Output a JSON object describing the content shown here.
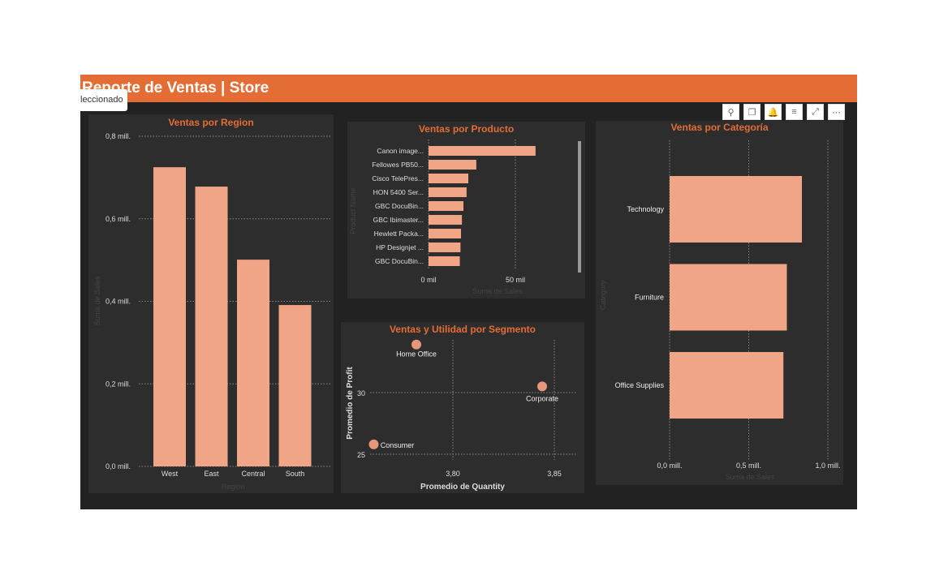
{
  "header": {
    "title": "Reporte de Ventas | Store"
  },
  "tooltip": {
    "text": "leccionado"
  },
  "toolbar": [
    {
      "name": "pin-icon",
      "glyph": "⚲"
    },
    {
      "name": "copy-icon",
      "glyph": "❐"
    },
    {
      "name": "bell-icon",
      "glyph": "🔔"
    },
    {
      "name": "filter-icon",
      "glyph": "≡"
    },
    {
      "name": "focus-mode-icon",
      "glyph": "⤢"
    },
    {
      "name": "more-options-icon",
      "glyph": "⋯"
    }
  ],
  "colors": {
    "accent": "#E46C35",
    "bar": "#F0A586",
    "panel": "#2d2d2d"
  },
  "chart_data": [
    {
      "id": "region",
      "type": "bar",
      "title": "Ventas por Region",
      "xlabel": "Region",
      "ylabel": "Suma de Sales",
      "categories": [
        "West",
        "East",
        "Central",
        "South"
      ],
      "values": [
        0.725,
        0.678,
        0.501,
        0.391
      ],
      "ylim": [
        0,
        0.8
      ],
      "yticks": [
        0,
        0.2,
        0.4,
        0.6,
        0.8
      ],
      "ytick_labels": [
        "0,0 mill.",
        "0,2 mill.",
        "0,4 mill.",
        "0,6 mill.",
        "0,8 mill."
      ],
      "grid": true
    },
    {
      "id": "producto",
      "type": "bar",
      "orientation": "horizontal",
      "title": "Ventas por Producto",
      "xlabel": "Suma de Sales",
      "ylabel": "Product Name",
      "categories": [
        "Canon image...",
        "Fellowes PB50...",
        "Cisco TelePres...",
        "HON 5400 Ser...",
        "GBC DocuBin...",
        "GBC Ibimaster...",
        "Hewlett Packa...",
        "HP Designjet ...",
        "GBC DocuBin..."
      ],
      "values": [
        61.6,
        27.5,
        22.9,
        21.9,
        20.1,
        19.2,
        18.7,
        18.4,
        18.0
      ],
      "xlim": [
        0,
        85
      ],
      "xticks": [
        0,
        50
      ],
      "xtick_labels": [
        "0 mil",
        "50 mil"
      ],
      "grid": true
    },
    {
      "id": "segmento",
      "type": "scatter",
      "title": "Ventas y Utilidad por Segmento",
      "xlabel": "Promedio de Quantity",
      "ylabel": "Promedio de Profit",
      "points": [
        {
          "label": "Home Office",
          "x": 3.782,
          "y": 33.9
        },
        {
          "label": "Corporate",
          "x": 3.844,
          "y": 30.5
        },
        {
          "label": "Consumer",
          "x": 3.761,
          "y": 25.8
        }
      ],
      "xlim": [
        3.761,
        3.862
      ],
      "ylim": [
        24.8,
        33.9
      ],
      "xticks": [
        3.8,
        3.85
      ],
      "xtick_labels": [
        "3,80",
        "3,85"
      ],
      "yticks": [
        25,
        30
      ],
      "ytick_labels": [
        "25",
        "30"
      ],
      "grid": true
    },
    {
      "id": "categoria",
      "type": "bar",
      "orientation": "horizontal",
      "title": "Ventas por Categoría",
      "xlabel": "Suma de Sales",
      "ylabel": "Category",
      "categories": [
        "Technology",
        "Furniture",
        "Office Supplies"
      ],
      "values": [
        0.836,
        0.741,
        0.719
      ],
      "xlim": [
        0,
        1.0
      ],
      "xticks": [
        0,
        0.5,
        1.0
      ],
      "xtick_labels": [
        "0,0 mill.",
        "0,5 mill.",
        "1,0 mill."
      ],
      "grid": true
    }
  ]
}
